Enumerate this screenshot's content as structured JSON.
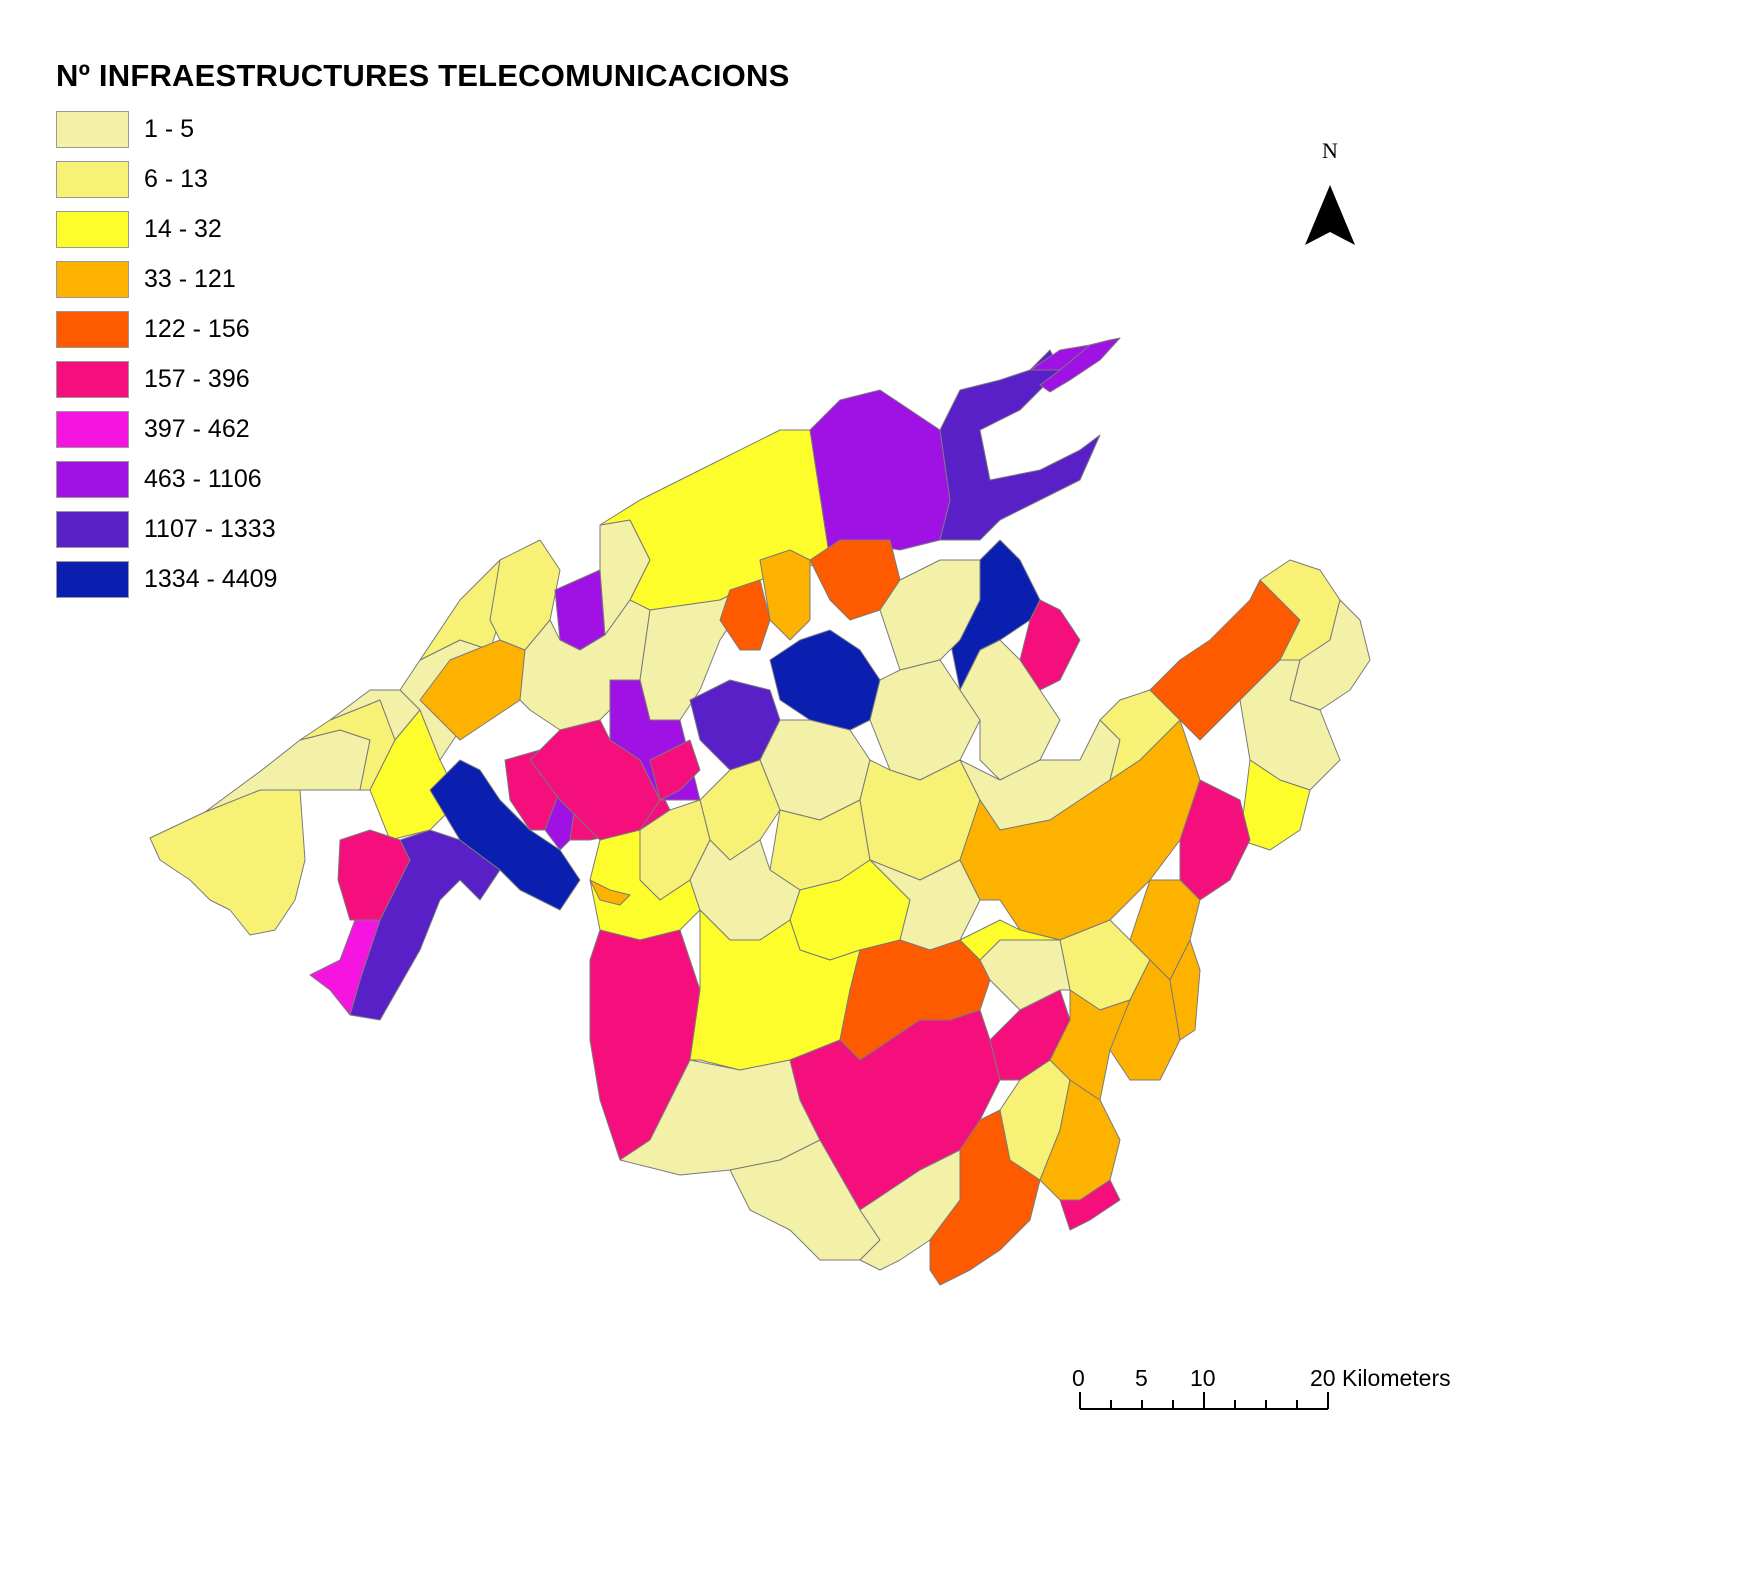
{
  "title": "Nº INFRAESTRUCTURES TELECOMUNICACIONS",
  "legend": [
    {
      "label": "1 - 5",
      "color": "#f3f0a8"
    },
    {
      "label": "6 - 13",
      "color": "#f7f275"
    },
    {
      "label": "14 - 32",
      "color": "#fdfd2b"
    },
    {
      "label": "33 - 121",
      "color": "#feb200"
    },
    {
      "label": "122 - 156",
      "color": "#fe5a00"
    },
    {
      "label": "157 - 396",
      "color": "#f50f7c"
    },
    {
      "label": "397 - 462",
      "color": "#f514e0"
    },
    {
      "label": "463 - 1106",
      "color": "#9f12e3"
    },
    {
      "label": "1107 - 1333",
      "color": "#5a20c7"
    },
    {
      "label": "1334 - 4409",
      "color": "#0a1fb0"
    }
  ],
  "north_arrow": {
    "label": "N"
  },
  "scale_bar": {
    "labels": [
      "0",
      "5",
      "10",
      "20 Kilometers"
    ]
  }
}
